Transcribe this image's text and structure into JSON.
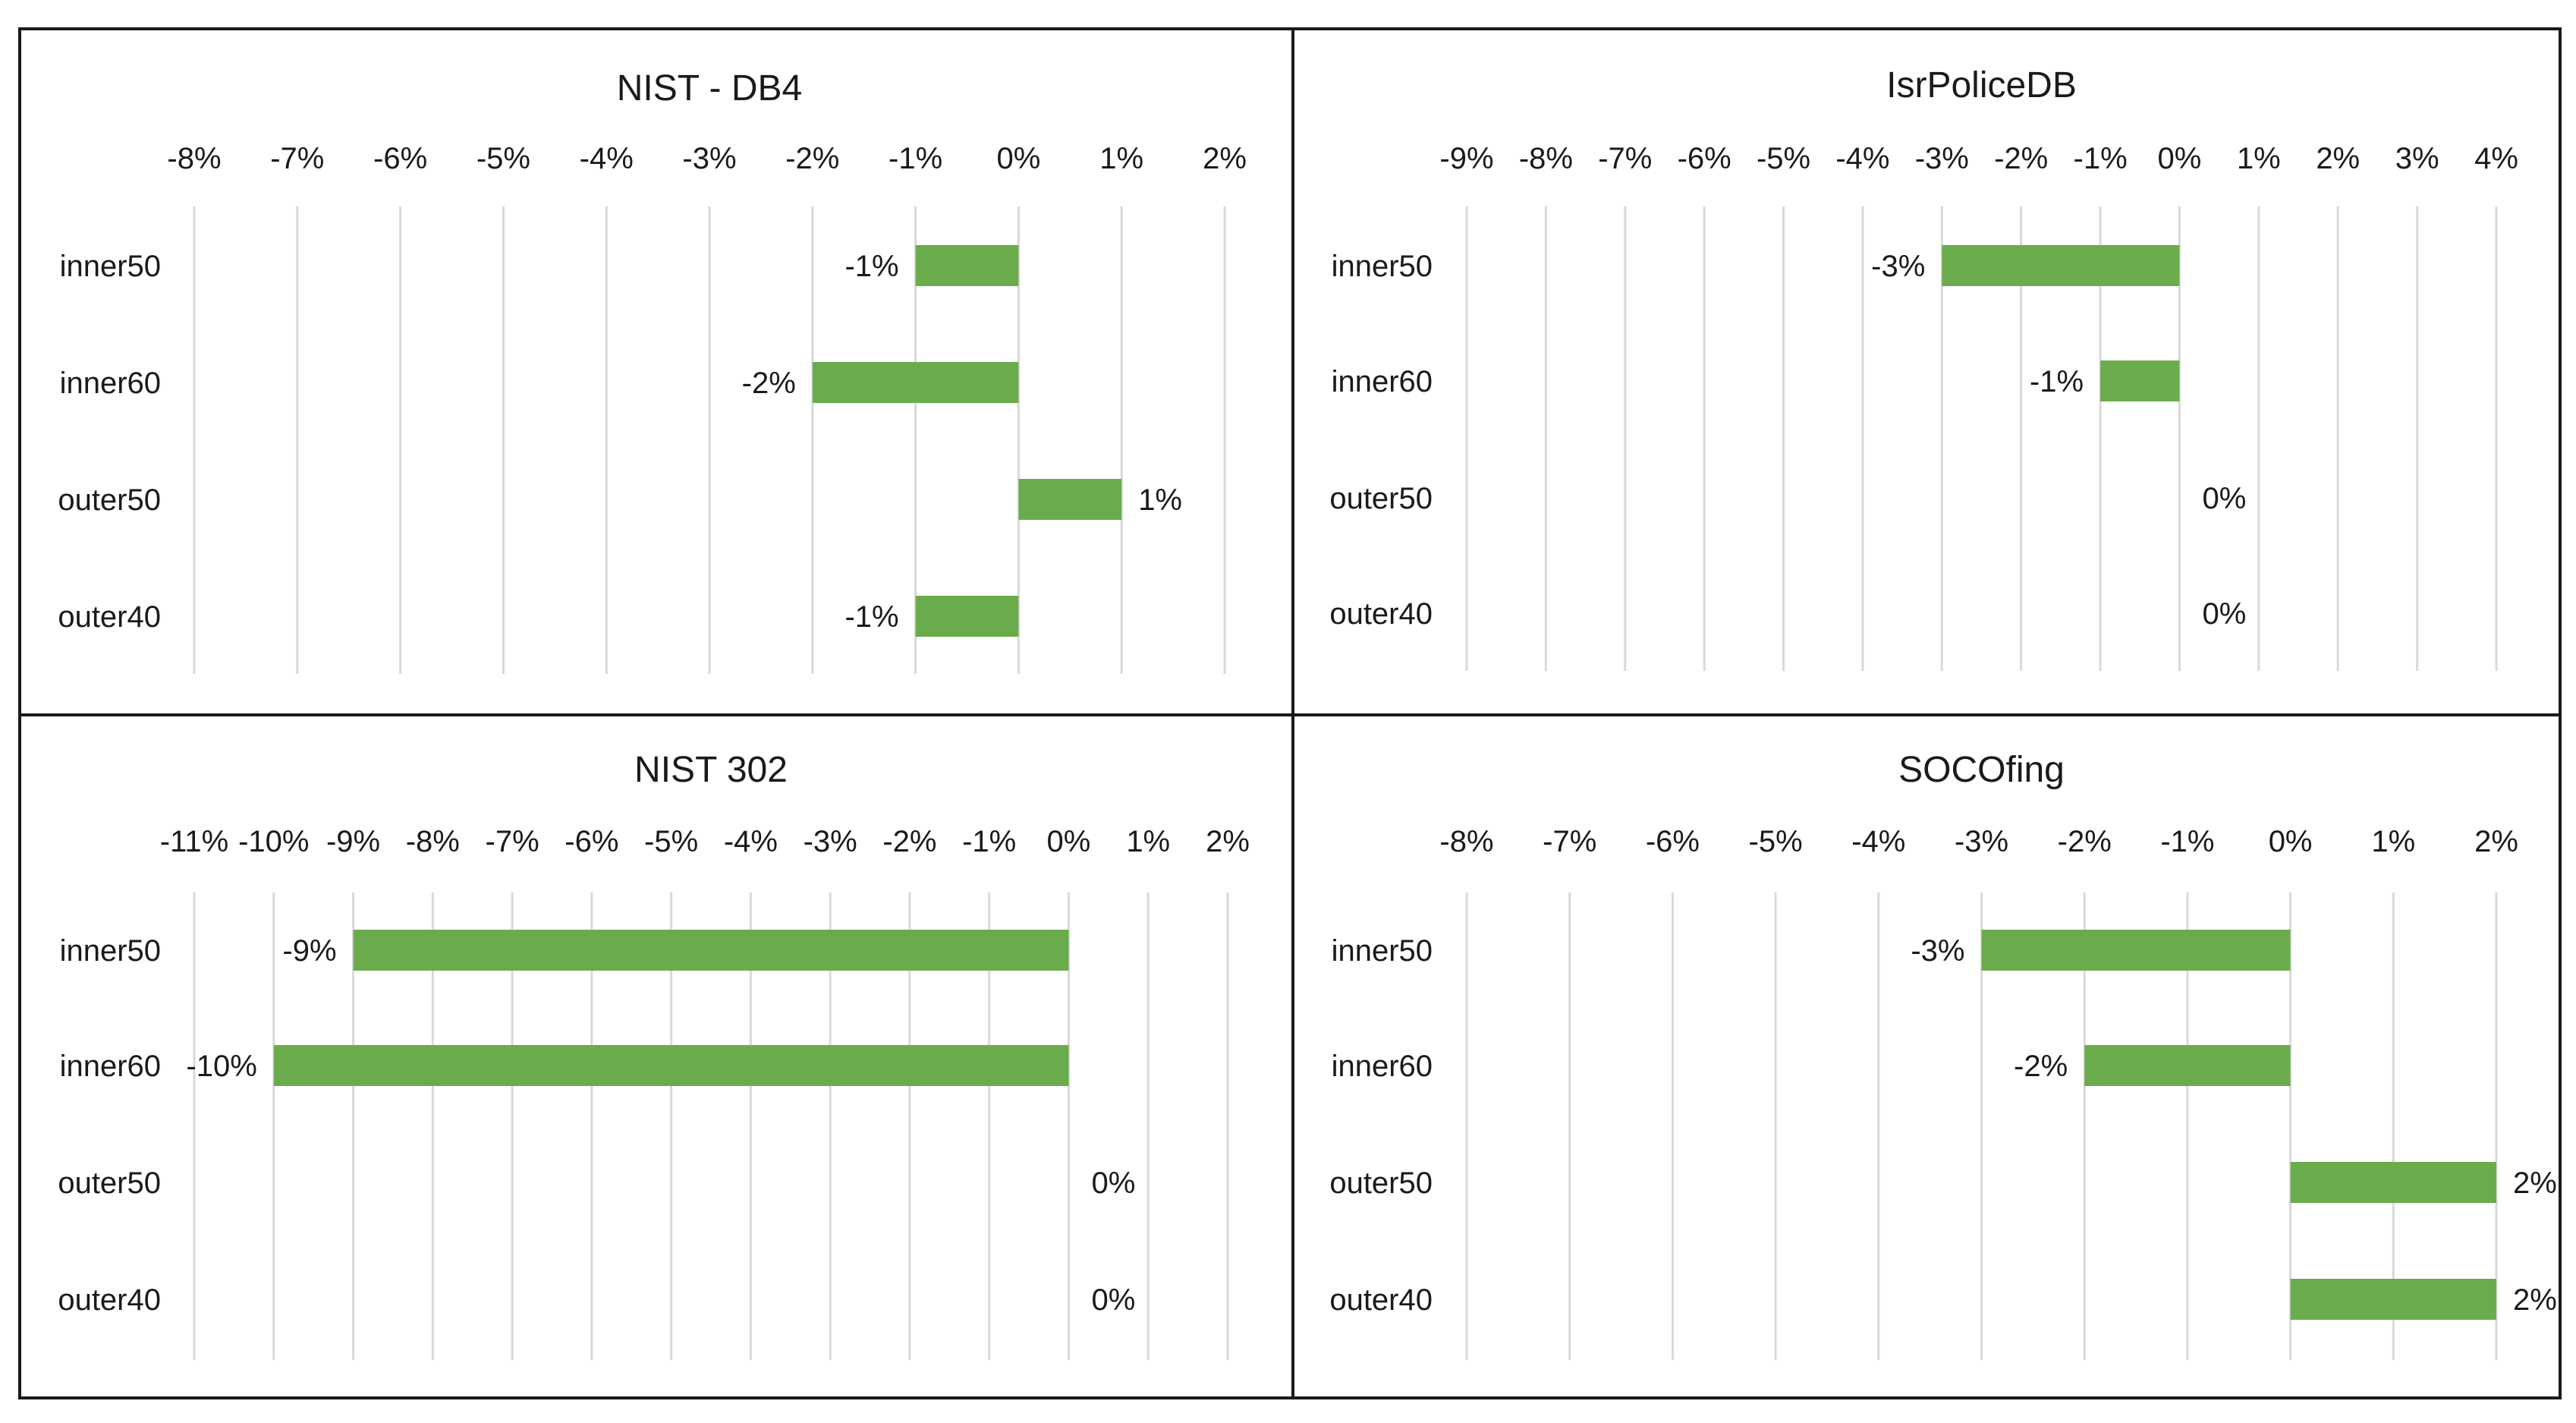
{
  "style": {
    "bar_color": "#6aac4c",
    "grid_color": "#d9d9d9",
    "frame_color": "#1a1a1a"
  },
  "chart_data": [
    {
      "type": "bar",
      "orientation": "horizontal",
      "title": "NIST - DB4",
      "categories": [
        "inner50",
        "inner60",
        "outer50",
        "outer40"
      ],
      "values": [
        -1,
        -2,
        1,
        -1
      ],
      "data_labels": [
        "-1%",
        "-2%",
        "1%",
        "-1%"
      ],
      "xlim": [
        -8,
        2
      ],
      "ticks": [
        -8,
        -7,
        -6,
        -5,
        -4,
        -3,
        -2,
        -1,
        0,
        1,
        2
      ],
      "tick_labels": [
        "-8%",
        "-7%",
        "-6%",
        "-5%",
        "-4%",
        "-3%",
        "-2%",
        "-1%",
        "0%",
        "1%",
        "2%"
      ],
      "axis_position": "top",
      "grid": true
    },
    {
      "type": "bar",
      "orientation": "horizontal",
      "title": "IsrPoliceDB",
      "categories": [
        "inner50",
        "inner60",
        "outer50",
        "outer40"
      ],
      "values": [
        -3,
        -1,
        0,
        0
      ],
      "data_labels": [
        "-3%",
        "-1%",
        "0%",
        "0%"
      ],
      "xlim": [
        -9,
        4
      ],
      "ticks": [
        -9,
        -8,
        -7,
        -6,
        -5,
        -4,
        -3,
        -2,
        -1,
        0,
        1,
        2,
        3,
        4
      ],
      "tick_labels": [
        "-9%",
        "-8%",
        "-7%",
        "-6%",
        "-5%",
        "-4%",
        "-3%",
        "-2%",
        "-1%",
        "0%",
        "1%",
        "2%",
        "3%",
        "4%"
      ],
      "axis_position": "top",
      "grid": true
    },
    {
      "type": "bar",
      "orientation": "horizontal",
      "title": "NIST 302",
      "categories": [
        "inner50",
        "inner60",
        "outer50",
        "outer40"
      ],
      "values": [
        -9,
        -10,
        0,
        0
      ],
      "data_labels": [
        "-9%",
        "-10%",
        "0%",
        "0%"
      ],
      "xlim": [
        -11,
        2
      ],
      "ticks": [
        -11,
        -10,
        -9,
        -8,
        -7,
        -6,
        -5,
        -4,
        -3,
        -2,
        -1,
        0,
        1,
        2
      ],
      "tick_labels": [
        "-11%",
        "-10%",
        "-9%",
        "-8%",
        "-7%",
        "-6%",
        "-5%",
        "-4%",
        "-3%",
        "-2%",
        "-1%",
        "0%",
        "1%",
        "2%"
      ],
      "axis_position": "top",
      "grid": true
    },
    {
      "type": "bar",
      "orientation": "horizontal",
      "title": "SOCOfing",
      "categories": [
        "inner50",
        "inner60",
        "outer50",
        "outer40"
      ],
      "values": [
        -3,
        -2,
        2,
        2
      ],
      "data_labels": [
        "-3%",
        "-2%",
        "2%",
        "2%"
      ],
      "xlim": [
        -8,
        2
      ],
      "ticks": [
        -8,
        -7,
        -6,
        -5,
        -4,
        -3,
        -2,
        -1,
        0,
        1,
        2
      ],
      "tick_labels": [
        "-8%",
        "-7%",
        "-6%",
        "-5%",
        "-4%",
        "-3%",
        "-2%",
        "-1%",
        "0%",
        "1%",
        "2%"
      ],
      "axis_position": "top",
      "grid": true
    }
  ]
}
